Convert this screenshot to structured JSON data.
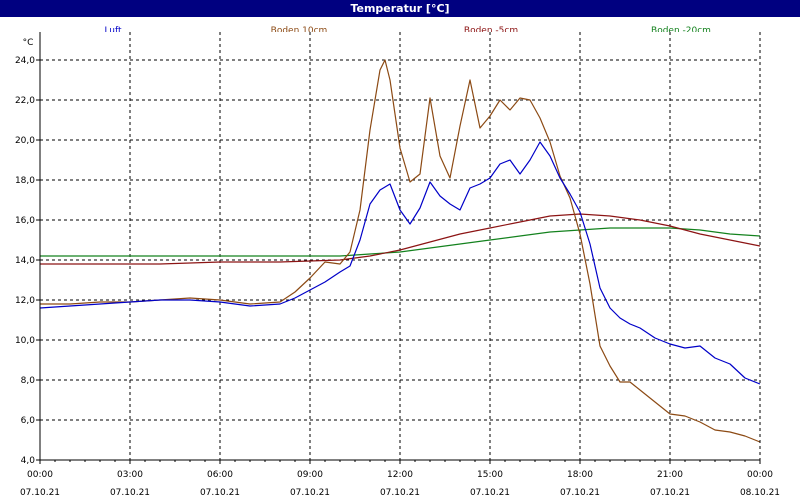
{
  "window": {
    "title": "Temperatur [°C]"
  },
  "chart_data": {
    "type": "line",
    "title": "Temperatur [°C]",
    "yunit": "°C",
    "ylim": [
      4.0,
      25.0
    ],
    "xlim": [
      "07.10.21 00:00",
      "08.10.21 00:00"
    ],
    "grid": true,
    "legend_position": "top",
    "y_ticks": [
      "4,0",
      "6,0",
      "8,0",
      "10,0",
      "12,0",
      "14,0",
      "16,0",
      "18,0",
      "20,0",
      "22,0",
      "24,0"
    ],
    "x_ticks": [
      {
        "time": "00:00",
        "date": "07.10.21"
      },
      {
        "time": "03:00",
        "date": "07.10.21"
      },
      {
        "time": "06:00",
        "date": "07.10.21"
      },
      {
        "time": "09:00",
        "date": "07.10.21"
      },
      {
        "time": "12:00",
        "date": "07.10.21"
      },
      {
        "time": "15:00",
        "date": "07.10.21"
      },
      {
        "time": "18:00",
        "date": "07.10.21"
      },
      {
        "time": "21:00",
        "date": "07.10.21"
      },
      {
        "time": "00:00",
        "date": "08.10.21"
      }
    ],
    "series": [
      {
        "name": "Luft",
        "color": "#0000c8",
        "points": [
          [
            "07.10.21 00:00",
            11.6
          ],
          [
            "07.10.21 01:00",
            11.7
          ],
          [
            "07.10.21 02:00",
            11.8
          ],
          [
            "07.10.21 03:00",
            11.9
          ],
          [
            "07.10.21 04:00",
            12.0
          ],
          [
            "07.10.21 05:00",
            12.0
          ],
          [
            "07.10.21 06:00",
            11.9
          ],
          [
            "07.10.21 07:00",
            11.7
          ],
          [
            "07.10.21 08:00",
            11.8
          ],
          [
            "07.10.21 08:30",
            12.1
          ],
          [
            "07.10.21 09:00",
            12.5
          ],
          [
            "07.10.21 09:30",
            12.9
          ],
          [
            "07.10.21 10:00",
            13.4
          ],
          [
            "07.10.21 10:20",
            13.7
          ],
          [
            "07.10.21 10:40",
            15.0
          ],
          [
            "07.10.21 11:00",
            16.8
          ],
          [
            "07.10.21 11:20",
            17.5
          ],
          [
            "07.10.21 11:40",
            17.8
          ],
          [
            "07.10.21 12:00",
            16.5
          ],
          [
            "07.10.21 12:20",
            15.8
          ],
          [
            "07.10.21 12:40",
            16.6
          ],
          [
            "07.10.21 13:00",
            17.9
          ],
          [
            "07.10.21 13:20",
            17.2
          ],
          [
            "07.10.21 13:40",
            16.8
          ],
          [
            "07.10.21 14:00",
            16.5
          ],
          [
            "07.10.21 14:20",
            17.6
          ],
          [
            "07.10.21 14:40",
            17.8
          ],
          [
            "07.10.21 15:00",
            18.1
          ],
          [
            "07.10.21 15:20",
            18.8
          ],
          [
            "07.10.21 15:40",
            19.0
          ],
          [
            "07.10.21 16:00",
            18.3
          ],
          [
            "07.10.21 16:20",
            19.0
          ],
          [
            "07.10.21 16:40",
            19.9
          ],
          [
            "07.10.21 17:00",
            19.2
          ],
          [
            "07.10.21 17:20",
            18.1
          ],
          [
            "07.10.21 17:40",
            17.3
          ],
          [
            "07.10.21 18:00",
            16.4
          ],
          [
            "07.10.21 18:20",
            14.8
          ],
          [
            "07.10.21 18:40",
            12.6
          ],
          [
            "07.10.21 19:00",
            11.6
          ],
          [
            "07.10.21 19:20",
            11.1
          ],
          [
            "07.10.21 19:40",
            10.8
          ],
          [
            "07.10.21 20:00",
            10.6
          ],
          [
            "07.10.21 20:30",
            10.1
          ],
          [
            "07.10.21 21:00",
            9.8
          ],
          [
            "07.10.21 21:30",
            9.6
          ],
          [
            "07.10.21 22:00",
            9.7
          ],
          [
            "07.10.21 22:30",
            9.1
          ],
          [
            "07.10.21 23:00",
            8.8
          ],
          [
            "07.10.21 23:30",
            8.1
          ],
          [
            "08.10.21 00:00",
            7.8
          ]
        ]
      },
      {
        "name": "Boden 10cm",
        "color": "#8c4a14",
        "points": [
          [
            "07.10.21 00:00",
            11.8
          ],
          [
            "07.10.21 01:00",
            11.8
          ],
          [
            "07.10.21 02:00",
            11.9
          ],
          [
            "07.10.21 03:00",
            11.9
          ],
          [
            "07.10.21 04:00",
            12.0
          ],
          [
            "07.10.21 05:00",
            12.1
          ],
          [
            "07.10.21 06:00",
            12.0
          ],
          [
            "07.10.21 07:00",
            11.8
          ],
          [
            "07.10.21 08:00",
            11.9
          ],
          [
            "07.10.21 08:30",
            12.4
          ],
          [
            "07.10.21 09:00",
            13.1
          ],
          [
            "07.10.21 09:30",
            13.9
          ],
          [
            "07.10.21 10:00",
            13.8
          ],
          [
            "07.10.21 10:20",
            14.4
          ],
          [
            "07.10.21 10:40",
            16.5
          ],
          [
            "07.10.21 11:00",
            20.5
          ],
          [
            "07.10.21 11:20",
            23.5
          ],
          [
            "07.10.21 11:30",
            24.0
          ],
          [
            "07.10.21 11:40",
            23.0
          ],
          [
            "07.10.21 12:00",
            19.6
          ],
          [
            "07.10.21 12:20",
            17.9
          ],
          [
            "07.10.21 12:40",
            18.3
          ],
          [
            "07.10.21 13:00",
            22.1
          ],
          [
            "07.10.21 13:20",
            19.2
          ],
          [
            "07.10.21 13:40",
            18.1
          ],
          [
            "07.10.21 14:00",
            20.7
          ],
          [
            "07.10.21 14:20",
            23.0
          ],
          [
            "07.10.21 14:40",
            20.6
          ],
          [
            "07.10.21 15:00",
            21.2
          ],
          [
            "07.10.21 15:20",
            22.0
          ],
          [
            "07.10.21 15:40",
            21.5
          ],
          [
            "07.10.21 16:00",
            22.1
          ],
          [
            "07.10.21 16:20",
            22.0
          ],
          [
            "07.10.21 16:40",
            21.1
          ],
          [
            "07.10.21 17:00",
            19.9
          ],
          [
            "07.10.21 17:20",
            18.2
          ],
          [
            "07.10.21 17:40",
            17.1
          ],
          [
            "07.10.21 18:00",
            15.3
          ],
          [
            "07.10.21 18:20",
            12.8
          ],
          [
            "07.10.21 18:40",
            9.7
          ],
          [
            "07.10.21 19:00",
            8.7
          ],
          [
            "07.10.21 19:20",
            7.9
          ],
          [
            "07.10.21 19:40",
            7.9
          ],
          [
            "07.10.21 20:00",
            7.5
          ],
          [
            "07.10.21 20:30",
            6.9
          ],
          [
            "07.10.21 21:00",
            6.3
          ],
          [
            "07.10.21 21:30",
            6.2
          ],
          [
            "07.10.21 22:00",
            5.9
          ],
          [
            "07.10.21 22:30",
            5.5
          ],
          [
            "07.10.21 23:00",
            5.4
          ],
          [
            "07.10.21 23:30",
            5.2
          ],
          [
            "08.10.21 00:00",
            4.9
          ]
        ]
      },
      {
        "name": "Boden -5cm",
        "color": "#8c1414",
        "points": [
          [
            "07.10.21 00:00",
            13.8
          ],
          [
            "07.10.21 02:00",
            13.8
          ],
          [
            "07.10.21 04:00",
            13.8
          ],
          [
            "07.10.21 06:00",
            13.9
          ],
          [
            "07.10.21 08:00",
            13.9
          ],
          [
            "07.10.21 10:00",
            14.0
          ],
          [
            "07.10.21 11:00",
            14.2
          ],
          [
            "07.10.21 12:00",
            14.5
          ],
          [
            "07.10.21 13:00",
            14.9
          ],
          [
            "07.10.21 14:00",
            15.3
          ],
          [
            "07.10.21 15:00",
            15.6
          ],
          [
            "07.10.21 16:00",
            15.9
          ],
          [
            "07.10.21 17:00",
            16.2
          ],
          [
            "07.10.21 18:00",
            16.3
          ],
          [
            "07.10.21 19:00",
            16.2
          ],
          [
            "07.10.21 20:00",
            16.0
          ],
          [
            "07.10.21 21:00",
            15.7
          ],
          [
            "07.10.21 22:00",
            15.3
          ],
          [
            "07.10.21 23:00",
            15.0
          ],
          [
            "08.10.21 00:00",
            14.7
          ]
        ]
      },
      {
        "name": "Boden -20cm",
        "color": "#14821e",
        "points": [
          [
            "07.10.21 00:00",
            14.2
          ],
          [
            "07.10.21 02:00",
            14.2
          ],
          [
            "07.10.21 04:00",
            14.2
          ],
          [
            "07.10.21 06:00",
            14.2
          ],
          [
            "07.10.21 08:00",
            14.2
          ],
          [
            "07.10.21 10:00",
            14.2
          ],
          [
            "07.10.21 11:00",
            14.3
          ],
          [
            "07.10.21 12:00",
            14.4
          ],
          [
            "07.10.21 13:00",
            14.6
          ],
          [
            "07.10.21 14:00",
            14.8
          ],
          [
            "07.10.21 15:00",
            15.0
          ],
          [
            "07.10.21 16:00",
            15.2
          ],
          [
            "07.10.21 17:00",
            15.4
          ],
          [
            "07.10.21 18:00",
            15.5
          ],
          [
            "07.10.21 19:00",
            15.6
          ],
          [
            "07.10.21 20:00",
            15.6
          ],
          [
            "07.10.21 21:00",
            15.6
          ],
          [
            "07.10.21 22:00",
            15.5
          ],
          [
            "07.10.21 23:00",
            15.3
          ],
          [
            "08.10.21 00:00",
            15.2
          ]
        ]
      }
    ]
  }
}
